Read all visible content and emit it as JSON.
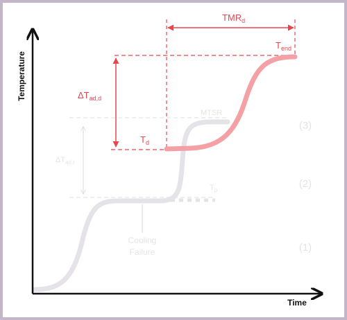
{
  "axes": {
    "x_label": "Time",
    "y_label": "Temperature"
  },
  "labels": {
    "tmr_d": {
      "main": "TMR",
      "sub": "d"
    },
    "t_end": {
      "main": "T",
      "sub": "end"
    },
    "delta_t_ad_d": {
      "main": "ΔT",
      "sub": "ad,d"
    },
    "t_d": {
      "main": "T",
      "sub": "d"
    },
    "mtsr": "MTSR",
    "delta_t_ad_r": {
      "main": "ΔT",
      "sub": "ad,r"
    },
    "t_p": {
      "main": "T",
      "sub": "p"
    },
    "cooling_failure_line1": "Cooling",
    "cooling_failure_line2": "Failure"
  },
  "stages": [
    "(3)",
    "(2)",
    "(1)"
  ],
  "colors": {
    "accent": "#e8454f",
    "highlight_curve": "#f3a1a5",
    "faded": "#e6e3e8",
    "axis": "#111111",
    "frame": "#c3b6c9"
  }
}
